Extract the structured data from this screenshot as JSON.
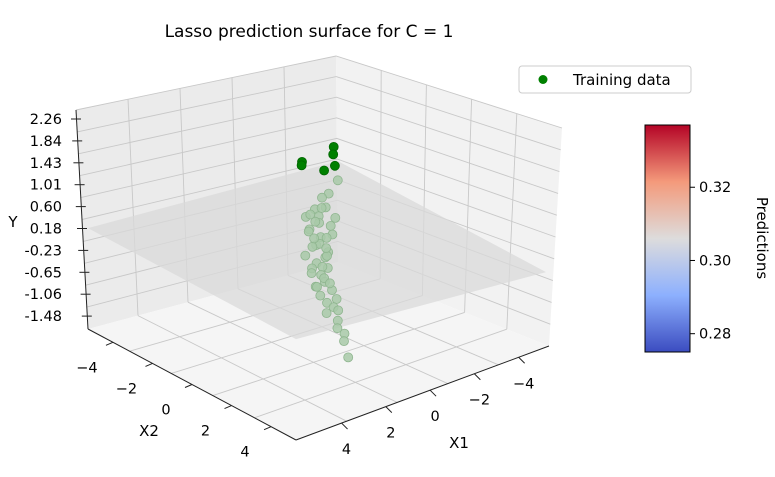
{
  "chart_data": {
    "type": "scatter",
    "projection": "3d",
    "title": "Lasso prediction surface for C = 1",
    "xlabel": "X1",
    "ylabel": "X2",
    "zlabel": "Y",
    "x_ticks": [
      "4",
      "2",
      "0",
      "−2",
      "−4"
    ],
    "y_ticks": [
      "−4",
      "−2",
      "0",
      "2",
      "4"
    ],
    "z_ticks": [
      "2.26",
      "1.84",
      "1.43",
      "1.01",
      "0.60",
      "0.18",
      "-0.23",
      "-0.65",
      "-1.06",
      "-1.48"
    ],
    "xlim": [
      -5,
      5
    ],
    "ylim": [
      -5,
      5
    ],
    "zlim": [
      -1.48,
      2.26
    ],
    "grid": true,
    "legend": {
      "position": "top-right",
      "entries": [
        "Training data"
      ]
    },
    "colorbar": {
      "label": "Predictions",
      "ticks": [
        "0.32",
        "0.30",
        "0.28"
      ],
      "range": [
        0.275,
        0.337
      ],
      "colormap": "coolwarm"
    },
    "surface": {
      "z_value": 0.3,
      "color": "#d9d9d9"
    },
    "marker_colors": {
      "highlighted": "#008000",
      "faded": "#a8c9a8"
    },
    "series": [
      {
        "name": "Training data",
        "points": [
          [
            -0.5,
            0.2,
            2.1
          ],
          [
            -0.4,
            0.3,
            2.0
          ],
          [
            -0.3,
            0.5,
            1.85
          ],
          [
            -0.2,
            0.1,
            1.7
          ],
          [
            0.1,
            -0.6,
            1.75
          ],
          [
            0.2,
            -0.5,
            1.72
          ],
          [
            -0.5,
            0.4,
            1.55
          ],
          [
            -0.3,
            0.2,
            1.3
          ],
          [
            -0.2,
            0.0,
            1.2
          ],
          [
            -0.1,
            0.3,
            1.1
          ],
          [
            0.0,
            -0.1,
            1.0
          ],
          [
            0.1,
            0.2,
            0.95
          ],
          [
            -0.4,
            0.4,
            0.9
          ],
          [
            0.2,
            -0.3,
            0.85
          ],
          [
            0.0,
            0.1,
            0.8
          ],
          [
            -0.1,
            -0.2,
            0.75
          ],
          [
            0.3,
            0.0,
            0.7
          ],
          [
            -0.2,
            0.5,
            0.65
          ],
          [
            0.1,
            0.3,
            0.6
          ],
          [
            0.0,
            -0.4,
            0.55
          ],
          [
            -0.3,
            0.1,
            0.5
          ],
          [
            0.2,
            0.2,
            0.45
          ],
          [
            -0.1,
            0.0,
            0.4
          ],
          [
            0.1,
            -0.1,
            0.35
          ],
          [
            -0.2,
            0.3,
            0.3
          ],
          [
            0.0,
            0.4,
            0.25
          ],
          [
            0.3,
            -0.2,
            0.2
          ],
          [
            -0.4,
            0.0,
            0.15
          ],
          [
            0.1,
            0.1,
            0.1
          ],
          [
            -0.1,
            0.4,
            0.05
          ],
          [
            0.2,
            0.0,
            0.0
          ],
          [
            -0.3,
            -0.1,
            -0.05
          ],
          [
            0.0,
            0.2,
            -0.1
          ],
          [
            0.1,
            0.5,
            -0.15
          ],
          [
            -0.2,
            0.1,
            -0.2
          ],
          [
            0.3,
            0.3,
            -0.25
          ],
          [
            -0.1,
            0.6,
            -0.3
          ],
          [
            0.0,
            0.0,
            -0.35
          ],
          [
            0.2,
            0.4,
            -0.4
          ],
          [
            -0.2,
            0.7,
            -0.45
          ],
          [
            0.1,
            0.6,
            -0.5
          ],
          [
            0.0,
            0.8,
            -0.55
          ],
          [
            -0.1,
            0.9,
            -0.6
          ],
          [
            0.2,
            0.7,
            -0.65
          ],
          [
            0.0,
            1.0,
            -0.75
          ],
          [
            0.1,
            1.1,
            -0.85
          ],
          [
            -0.1,
            1.2,
            -0.95
          ],
          [
            0.0,
            1.3,
            -1.05
          ],
          [
            0.0,
            1.5,
            -1.3
          ],
          [
            -0.2,
            0.2,
            0.35
          ],
          [
            0.2,
            0.1,
            0.55
          ],
          [
            -0.3,
            0.3,
            0.75
          ],
          [
            0.1,
            -0.2,
            0.9
          ],
          [
            -0.1,
            0.1,
            1.05
          ],
          [
            0.3,
            0.1,
            -0.05
          ],
          [
            -0.1,
            0.5,
            -0.2
          ]
        ]
      }
    ]
  }
}
